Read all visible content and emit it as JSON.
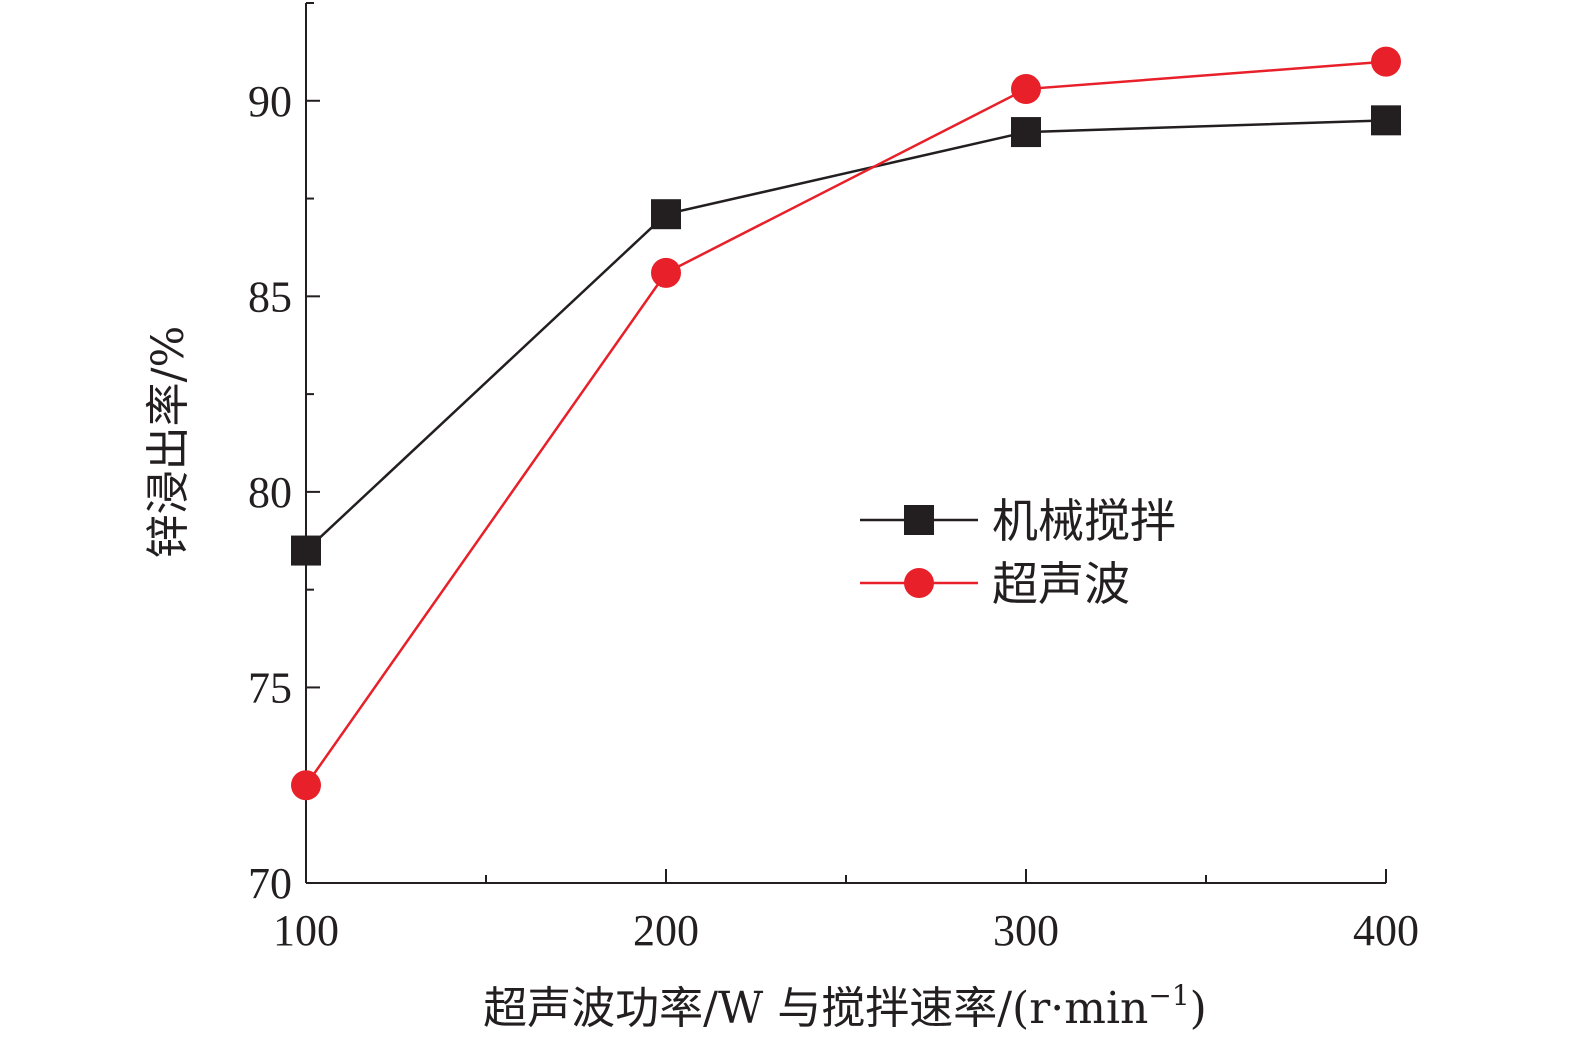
{
  "chart_data": {
    "type": "line",
    "title": "",
    "xlabel": "超声波功率/W 与搅拌速率/(r·min",
    "xlabel_sup": "−1",
    "xlabel_tail": ")",
    "ylabel": "锌浸出率/%",
    "x": [
      100,
      200,
      300,
      400
    ],
    "x_ticks": [
      "100",
      "200",
      "300",
      "400"
    ],
    "xlim": [
      100,
      400
    ],
    "y_ticks": [
      "70",
      "75",
      "80",
      "85",
      "90"
    ],
    "ylim": [
      70,
      92.5
    ],
    "grid": false,
    "legend_position": "center-right",
    "series": [
      {
        "name": "机械搅拌",
        "values": [
          78.5,
          87.1,
          89.2,
          89.5
        ],
        "color": "#231f20",
        "marker": "square"
      },
      {
        "name": "超声波",
        "values": [
          72.5,
          85.6,
          90.3,
          91.0
        ],
        "color": "#e8202a",
        "marker": "circle"
      }
    ]
  }
}
